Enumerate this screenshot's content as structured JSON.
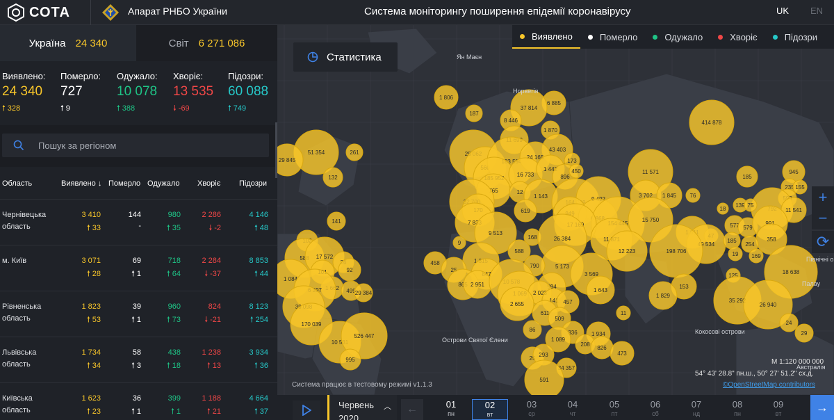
{
  "header": {
    "logo_text": "СОТА",
    "org_name": "Апарат РНБО України",
    "system_title": "Система моніторингу поширення епідемії коронавірусу",
    "lang_uk": "UK",
    "lang_en": "EN"
  },
  "scope": {
    "ukraine_label": "Україна",
    "ukraine_value": "24 340",
    "world_label": "Світ",
    "world_value": "6 271 086"
  },
  "totals": [
    {
      "label": "Виявлено:",
      "value": "24 340",
      "delta": "328",
      "dir": "up",
      "color": "yellow"
    },
    {
      "label": "Померло:",
      "value": "727",
      "delta": "9",
      "dir": "up",
      "color": "white"
    },
    {
      "label": "Одужало:",
      "value": "10 078",
      "delta": "388",
      "dir": "up",
      "color": "green"
    },
    {
      "label": "Хворіє:",
      "value": "13 535",
      "delta": "-69",
      "dir": "down",
      "color": "red"
    },
    {
      "label": "Підозри:",
      "value": "60 088",
      "delta": "749",
      "dir": "up",
      "color": "teal"
    }
  ],
  "search": {
    "placeholder": "Пошук за регіоном"
  },
  "table": {
    "columns": [
      "Область",
      "Виявлено",
      "Померло",
      "Одужало",
      "Хворіє",
      "Підозри"
    ],
    "rows": [
      {
        "name": "Чернівецька область",
        "detected": "3 410",
        "detected_d": "33",
        "died": "144",
        "died_d": "-",
        "recovered": "980",
        "recovered_d": "35",
        "sick": "2 286",
        "sick_d": "-2",
        "suspected": "4 146",
        "suspected_d": "48"
      },
      {
        "name": "м. Київ",
        "detected": "3 071",
        "detected_d": "28",
        "died": "69",
        "died_d": "1",
        "recovered": "718",
        "recovered_d": "64",
        "sick": "2 284",
        "sick_d": "-37",
        "suspected": "8 853",
        "suspected_d": "44"
      },
      {
        "name": "Рівненська область",
        "detected": "1 823",
        "detected_d": "53",
        "died": "39",
        "died_d": "1",
        "recovered": "960",
        "recovered_d": "73",
        "sick": "824",
        "sick_d": "-21",
        "suspected": "8 123",
        "suspected_d": "254"
      },
      {
        "name": "Львівська область",
        "detected": "1 734",
        "detected_d": "34",
        "died": "58",
        "died_d": "3",
        "recovered": "438",
        "recovered_d": "18",
        "sick": "1 238",
        "sick_d": "13",
        "suspected": "3 934",
        "suspected_d": "36"
      },
      {
        "name": "Київська область",
        "detected": "1 623",
        "detected_d": "23",
        "died": "36",
        "died_d": "1",
        "recovered": "399",
        "recovered_d": "1",
        "sick": "1 188",
        "sick_d": "21",
        "suspected": "4 664",
        "suspected_d": "37"
      }
    ]
  },
  "map": {
    "stats_button": "Статистика",
    "legend": [
      {
        "label": "Виявлено",
        "color": "#f8c62a",
        "active": true
      },
      {
        "label": "Померло",
        "color": "#ffffff",
        "active": false
      },
      {
        "label": "Одужало",
        "color": "#1fc486",
        "active": false
      },
      {
        "label": "Хворіє",
        "color": "#f04747",
        "active": false
      },
      {
        "label": "Підозри",
        "color": "#26c8c8",
        "active": false
      }
    ],
    "labels": [
      "Ян Маєн",
      "Норвегія",
      "Острови Святої Єлени",
      "Кокосові острови",
      "Палау",
      "Північні о",
      "Австралія"
    ],
    "scale": "М 1:120 000 000",
    "coords": "54° 43' 28.8\" пн.ш., 50° 27' 51.2\" сх.д.",
    "attribution": "©OpenStreetMap contributors",
    "version": "Система працює в тестовому режимі v1.1.3",
    "bubbles": [
      "1 806",
      "6 885",
      "187",
      "37 814",
      "8 446",
      "1 870",
      "414 878",
      "25 062",
      "11 699",
      "43 403",
      "51 354",
      "261",
      "29 845",
      "560",
      "183 594",
      "24 165",
      "173",
      "185 952",
      "16 733",
      "1 442",
      "11 571",
      "132",
      "896",
      "450",
      "945",
      "765",
      "12",
      "1 143",
      "185",
      "235",
      "155",
      "3 702",
      "1 845",
      "76",
      "32 700",
      "164 769",
      "9 492",
      "593",
      "170",
      "619",
      "949",
      "792",
      "11 541",
      "139",
      "75",
      "18",
      "7 833",
      "6 868",
      "154 445",
      "15 750",
      "577",
      "579",
      "991",
      "141",
      "9 513",
      "17 169",
      "168",
      "1 811",
      "47",
      "712",
      "26 384",
      "11 871",
      "49 534",
      "185",
      "358",
      "102",
      "9",
      "588",
      "12 223",
      "198 706",
      "254",
      "588",
      "17 572",
      "1 315",
      "19",
      "169",
      "5 173",
      "18 638",
      "458",
      "26",
      "92",
      "25",
      "847",
      "790",
      "3 569",
      "125",
      "1 084",
      "101",
      "1 662",
      "865",
      "2 951",
      "10 578",
      "994",
      "1 643",
      "153",
      "499",
      "29 384",
      "6 397",
      "1 069",
      "2 023",
      "141",
      "1 829",
      "35 292",
      "26 940",
      "39 098",
      "2 655",
      "457",
      "611",
      "11",
      "170 039",
      "509",
      "24",
      "86",
      "29",
      "10 531",
      "526 447",
      "336",
      "1 934",
      "1 089",
      "208",
      "826",
      "473",
      "25",
      "293",
      "995",
      "34 357",
      "591"
    ]
  },
  "timeline": {
    "month": "Червень",
    "year": "2020",
    "days": [
      {
        "num": "01",
        "wd": "пн"
      },
      {
        "num": "02",
        "wd": "вт"
      },
      {
        "num": "03",
        "wd": "ср"
      },
      {
        "num": "04",
        "wd": "чт"
      },
      {
        "num": "05",
        "wd": "пт"
      },
      {
        "num": "06",
        "wd": "сб"
      },
      {
        "num": "07",
        "wd": "нд"
      },
      {
        "num": "08",
        "wd": "пн"
      },
      {
        "num": "09",
        "wd": "вт"
      }
    ]
  }
}
